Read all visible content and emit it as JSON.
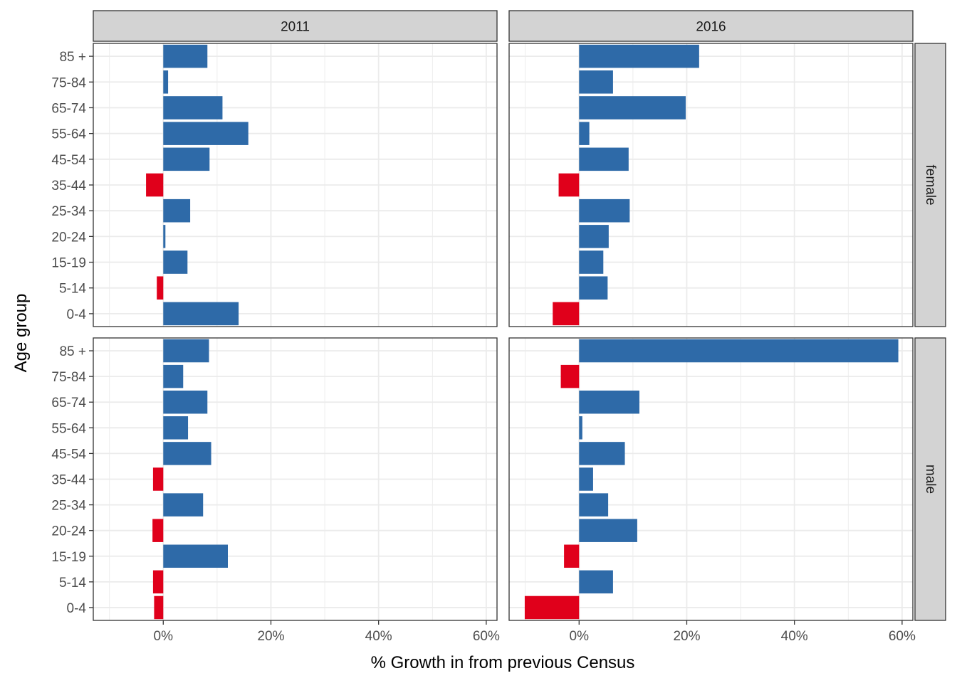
{
  "chart_data": {
    "type": "bar",
    "orientation": "horizontal",
    "xlabel": "% Growth in from previous Census",
    "ylabel": "Age group",
    "categories": [
      "0-4",
      "5-14",
      "15-19",
      "20-24",
      "25-34",
      "35-44",
      "45-54",
      "55-64",
      "65-74",
      "75-84",
      "85 +"
    ],
    "xlim": [
      -13,
      62
    ],
    "x_ticks": [
      0,
      20,
      40,
      60
    ],
    "x_tick_labels": [
      "0%",
      "20%",
      "40%",
      "60%"
    ],
    "grid": true,
    "legend": "none",
    "colors": {
      "positive": "#2e6aa8",
      "negative": "#e0001b",
      "strip_bg": "#d3d3d3",
      "grid": "#ebebeb"
    },
    "columns": [
      "2011",
      "2016"
    ],
    "rows": [
      "female",
      "male"
    ],
    "panels": [
      {
        "year": "2011",
        "sex": "female",
        "values": [
          14.0,
          -1.2,
          4.5,
          0.4,
          5.0,
          -3.2,
          8.6,
          15.8,
          11.0,
          0.9,
          8.2
        ]
      },
      {
        "year": "2016",
        "sex": "female",
        "values": [
          -4.9,
          5.3,
          4.5,
          5.5,
          9.4,
          -3.8,
          9.2,
          1.9,
          19.8,
          6.3,
          22.3
        ]
      },
      {
        "year": "2011",
        "sex": "male",
        "values": [
          -1.7,
          -1.9,
          12.0,
          -2.0,
          7.4,
          -1.9,
          8.9,
          4.6,
          8.2,
          3.7,
          8.5
        ]
      },
      {
        "year": "2016",
        "sex": "male",
        "values": [
          -10.1,
          6.3,
          -2.8,
          10.8,
          5.4,
          2.6,
          8.5,
          0.6,
          11.2,
          -3.4,
          59.3
        ]
      }
    ]
  }
}
